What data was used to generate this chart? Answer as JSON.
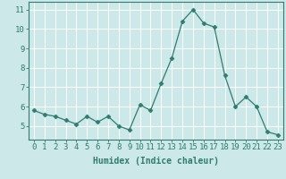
{
  "x": [
    0,
    1,
    2,
    3,
    4,
    5,
    6,
    7,
    8,
    9,
    10,
    11,
    12,
    13,
    14,
    15,
    16,
    17,
    18,
    19,
    20,
    21,
    22,
    23
  ],
  "y": [
    5.8,
    5.6,
    5.5,
    5.3,
    5.1,
    5.5,
    5.2,
    5.5,
    5.0,
    4.8,
    6.1,
    5.8,
    7.2,
    8.5,
    10.4,
    11.0,
    10.3,
    10.1,
    7.6,
    6.0,
    6.5,
    6.0,
    4.7,
    4.55
  ],
  "line_color": "#2e7d6e",
  "marker": "D",
  "marker_size": 2.5,
  "bg_color": "#cce8e8",
  "grid_color": "#ffffff",
  "xlabel": "Humidex (Indice chaleur)",
  "xlabel_fontsize": 7,
  "tick_fontsize": 6.5,
  "ylim": [
    4.3,
    11.4
  ],
  "yticks": [
    5,
    6,
    7,
    8,
    9,
    10,
    11
  ],
  "xlim": [
    -0.5,
    23.5
  ],
  "xticks": [
    0,
    1,
    2,
    3,
    4,
    5,
    6,
    7,
    8,
    9,
    10,
    11,
    12,
    13,
    14,
    15,
    16,
    17,
    18,
    19,
    20,
    21,
    22,
    23
  ]
}
